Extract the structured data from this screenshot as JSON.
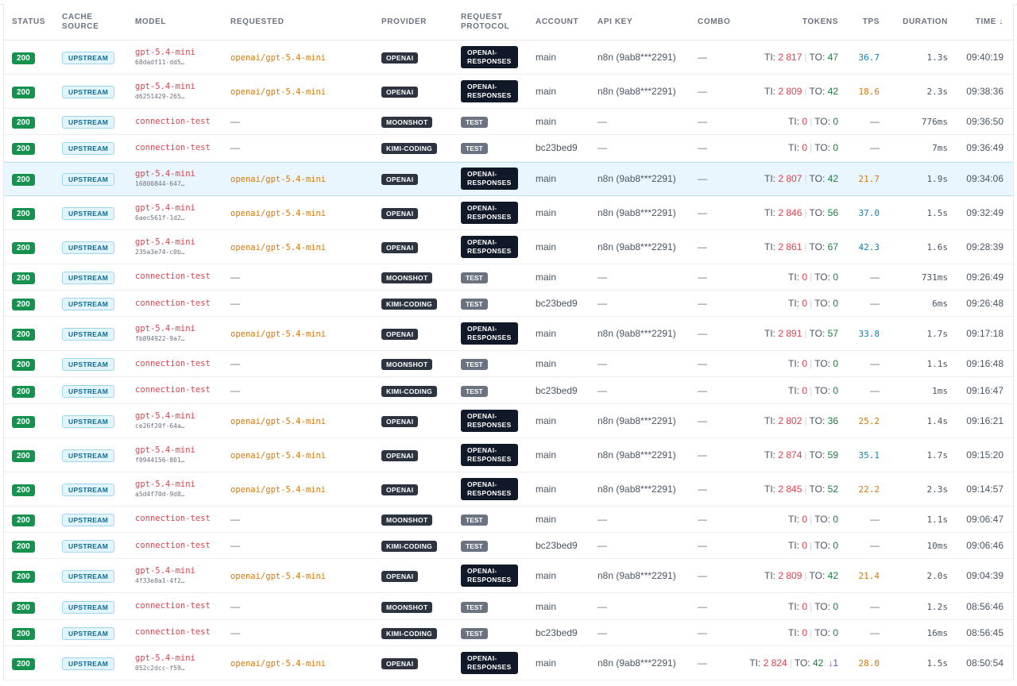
{
  "columns": {
    "status": "STATUS",
    "cache_source_1": "CACHE",
    "cache_source_2": "SOURCE",
    "model": "MODEL",
    "requested": "REQUESTED",
    "provider": "PROVIDER",
    "protocol_1": "REQUEST",
    "protocol_2": "PROTOCOL",
    "account": "ACCOUNT",
    "api_key": "API KEY",
    "combo": "COMBO",
    "tokens": "TOKENS",
    "tps": "TPS",
    "duration": "DURATION",
    "time": "TIME ↓"
  },
  "labels": {
    "ti": "TI:",
    "to": "TO:",
    "dash": "—"
  },
  "rows": [
    {
      "status": "200",
      "cache": "UPSTREAM",
      "model": "gpt-5.4-mini",
      "model_id": "68dadf11-dd5…",
      "requested": "openai/gpt-5.4-mini",
      "provider": "OPENAI",
      "protocol_1": "OPENAI-",
      "protocol_2": "RESPONSES",
      "account": "main",
      "api_key": "n8n (9ab8***2291)",
      "combo": "—",
      "ti": "2 817",
      "to": "47",
      "tps": "36.7",
      "tps_color": "blue",
      "duration": "1.3s",
      "time": "09:40:19"
    },
    {
      "status": "200",
      "cache": "UPSTREAM",
      "model": "gpt-5.4-mini",
      "model_id": "d6251429-265…",
      "requested": "openai/gpt-5.4-mini",
      "provider": "OPENAI",
      "protocol_1": "OPENAI-",
      "protocol_2": "RESPONSES",
      "account": "main",
      "api_key": "n8n (9ab8***2291)",
      "combo": "—",
      "ti": "2 809",
      "to": "42",
      "tps": "18.6",
      "tps_color": "orange",
      "duration": "2.3s",
      "time": "09:38:36"
    },
    {
      "status": "200",
      "cache": "UPSTREAM",
      "model": "connection-test",
      "model_id": "",
      "requested": "—",
      "provider": "MOONSHOT",
      "protocol_1": "TEST",
      "protocol_2": "",
      "account": "main",
      "api_key": "—",
      "combo": "—",
      "ti": "0",
      "to": "0",
      "tps": "—",
      "tps_color": "none",
      "duration": "776ms",
      "time": "09:36:50"
    },
    {
      "status": "200",
      "cache": "UPSTREAM",
      "model": "connection-test",
      "model_id": "",
      "requested": "—",
      "provider": "KIMI-CODING",
      "protocol_1": "TEST",
      "protocol_2": "",
      "account": "bc23bed9",
      "api_key": "—",
      "combo": "—",
      "ti": "0",
      "to": "0",
      "tps": "—",
      "tps_color": "none",
      "duration": "7ms",
      "time": "09:36:49"
    },
    {
      "status": "200",
      "cache": "UPSTREAM",
      "model": "gpt-5.4-mini",
      "model_id": "16800844-647…",
      "requested": "openai/gpt-5.4-mini",
      "provider": "OPENAI",
      "protocol_1": "OPENAI-",
      "protocol_2": "RESPONSES",
      "account": "main",
      "api_key": "n8n (9ab8***2291)",
      "combo": "—",
      "ti": "2 807",
      "to": "42",
      "tps": "21.7",
      "tps_color": "orange",
      "duration": "1.9s",
      "time": "09:34:06",
      "selected": true
    },
    {
      "status": "200",
      "cache": "UPSTREAM",
      "model": "gpt-5.4-mini",
      "model_id": "6aec561f-1d2…",
      "requested": "openai/gpt-5.4-mini",
      "provider": "OPENAI",
      "protocol_1": "OPENAI-",
      "protocol_2": "RESPONSES",
      "account": "main",
      "api_key": "n8n (9ab8***2291)",
      "combo": "—",
      "ti": "2 846",
      "to": "56",
      "tps": "37.0",
      "tps_color": "blue",
      "duration": "1.5s",
      "time": "09:32:49"
    },
    {
      "status": "200",
      "cache": "UPSTREAM",
      "model": "gpt-5.4-mini",
      "model_id": "235a3e74-c0b…",
      "requested": "openai/gpt-5.4-mini",
      "provider": "OPENAI",
      "protocol_1": "OPENAI-",
      "protocol_2": "RESPONSES",
      "account": "main",
      "api_key": "n8n (9ab8***2291)",
      "combo": "—",
      "ti": "2 861",
      "to": "67",
      "tps": "42.3",
      "tps_color": "blue",
      "duration": "1.6s",
      "time": "09:28:39"
    },
    {
      "status": "200",
      "cache": "UPSTREAM",
      "model": "connection-test",
      "model_id": "",
      "requested": "—",
      "provider": "MOONSHOT",
      "protocol_1": "TEST",
      "protocol_2": "",
      "account": "main",
      "api_key": "—",
      "combo": "—",
      "ti": "0",
      "to": "0",
      "tps": "—",
      "tps_color": "none",
      "duration": "731ms",
      "time": "09:26:49"
    },
    {
      "status": "200",
      "cache": "UPSTREAM",
      "model": "connection-test",
      "model_id": "",
      "requested": "—",
      "provider": "KIMI-CODING",
      "protocol_1": "TEST",
      "protocol_2": "",
      "account": "bc23bed9",
      "api_key": "—",
      "combo": "—",
      "ti": "0",
      "to": "0",
      "tps": "—",
      "tps_color": "none",
      "duration": "6ms",
      "time": "09:26:48"
    },
    {
      "status": "200",
      "cache": "UPSTREAM",
      "model": "gpt-5.4-mini",
      "model_id": "fb894922-9a7…",
      "requested": "openai/gpt-5.4-mini",
      "provider": "OPENAI",
      "protocol_1": "OPENAI-",
      "protocol_2": "RESPONSES",
      "account": "main",
      "api_key": "n8n (9ab8***2291)",
      "combo": "—",
      "ti": "2 891",
      "to": "57",
      "tps": "33.8",
      "tps_color": "blue",
      "duration": "1.7s",
      "time": "09:17:18"
    },
    {
      "status": "200",
      "cache": "UPSTREAM",
      "model": "connection-test",
      "model_id": "",
      "requested": "—",
      "provider": "MOONSHOT",
      "protocol_1": "TEST",
      "protocol_2": "",
      "account": "main",
      "api_key": "—",
      "combo": "—",
      "ti": "0",
      "to": "0",
      "tps": "—",
      "tps_color": "none",
      "duration": "1.1s",
      "time": "09:16:48"
    },
    {
      "status": "200",
      "cache": "UPSTREAM",
      "model": "connection-test",
      "model_id": "",
      "requested": "—",
      "provider": "KIMI-CODING",
      "protocol_1": "TEST",
      "protocol_2": "",
      "account": "bc23bed9",
      "api_key": "—",
      "combo": "—",
      "ti": "0",
      "to": "0",
      "tps": "—",
      "tps_color": "none",
      "duration": "1ms",
      "time": "09:16:47"
    },
    {
      "status": "200",
      "cache": "UPSTREAM",
      "model": "gpt-5.4-mini",
      "model_id": "ce26f20f-64a…",
      "requested": "openai/gpt-5.4-mini",
      "provider": "OPENAI",
      "protocol_1": "OPENAI-",
      "protocol_2": "RESPONSES",
      "account": "main",
      "api_key": "n8n (9ab8***2291)",
      "combo": "—",
      "ti": "2 802",
      "to": "36",
      "tps": "25.2",
      "tps_color": "orange",
      "duration": "1.4s",
      "time": "09:16:21"
    },
    {
      "status": "200",
      "cache": "UPSTREAM",
      "model": "gpt-5.4-mini",
      "model_id": "f0944156-801…",
      "requested": "openai/gpt-5.4-mini",
      "provider": "OPENAI",
      "protocol_1": "OPENAI-",
      "protocol_2": "RESPONSES",
      "account": "main",
      "api_key": "n8n (9ab8***2291)",
      "combo": "—",
      "ti": "2 874",
      "to": "59",
      "tps": "35.1",
      "tps_color": "blue",
      "duration": "1.7s",
      "time": "09:15:20"
    },
    {
      "status": "200",
      "cache": "UPSTREAM",
      "model": "gpt-5.4-mini",
      "model_id": "a5d4f70d-9d8…",
      "requested": "openai/gpt-5.4-mini",
      "provider": "OPENAI",
      "protocol_1": "OPENAI-",
      "protocol_2": "RESPONSES",
      "account": "main",
      "api_key": "n8n (9ab8***2291)",
      "combo": "—",
      "ti": "2 845",
      "to": "52",
      "tps": "22.2",
      "tps_color": "orange",
      "duration": "2.3s",
      "time": "09:14:57"
    },
    {
      "status": "200",
      "cache": "UPSTREAM",
      "model": "connection-test",
      "model_id": "",
      "requested": "—",
      "provider": "MOONSHOT",
      "protocol_1": "TEST",
      "protocol_2": "",
      "account": "main",
      "api_key": "—",
      "combo": "—",
      "ti": "0",
      "to": "0",
      "tps": "—",
      "tps_color": "none",
      "duration": "1.1s",
      "time": "09:06:47"
    },
    {
      "status": "200",
      "cache": "UPSTREAM",
      "model": "connection-test",
      "model_id": "",
      "requested": "—",
      "provider": "KIMI-CODING",
      "protocol_1": "TEST",
      "protocol_2": "",
      "account": "bc23bed9",
      "api_key": "—",
      "combo": "—",
      "ti": "0",
      "to": "0",
      "tps": "—",
      "tps_color": "none",
      "duration": "10ms",
      "time": "09:06:46"
    },
    {
      "status": "200",
      "cache": "UPSTREAM",
      "model": "gpt-5.4-mini",
      "model_id": "4f33e8a1-4f2…",
      "requested": "openai/gpt-5.4-mini",
      "provider": "OPENAI",
      "protocol_1": "OPENAI-",
      "protocol_2": "RESPONSES",
      "account": "main",
      "api_key": "n8n (9ab8***2291)",
      "combo": "—",
      "ti": "2 809",
      "to": "42",
      "tps": "21.4",
      "tps_color": "orange",
      "duration": "2.0s",
      "time": "09:04:39"
    },
    {
      "status": "200",
      "cache": "UPSTREAM",
      "model": "connection-test",
      "model_id": "",
      "requested": "—",
      "provider": "MOONSHOT",
      "protocol_1": "TEST",
      "protocol_2": "",
      "account": "main",
      "api_key": "—",
      "combo": "—",
      "ti": "0",
      "to": "0",
      "tps": "—",
      "tps_color": "none",
      "duration": "1.2s",
      "time": "08:56:46"
    },
    {
      "status": "200",
      "cache": "UPSTREAM",
      "model": "connection-test",
      "model_id": "",
      "requested": "—",
      "provider": "KIMI-CODING",
      "protocol_1": "TEST",
      "protocol_2": "",
      "account": "bc23bed9",
      "api_key": "—",
      "combo": "—",
      "ti": "0",
      "to": "0",
      "tps": "—",
      "tps_color": "none",
      "duration": "16ms",
      "time": "08:56:45"
    },
    {
      "status": "200",
      "cache": "UPSTREAM",
      "model": "gpt-5.4-mini",
      "model_id": "052c2dcc-f59…",
      "requested": "openai/gpt-5.4-mini",
      "provider": "OPENAI",
      "protocol_1": "OPENAI-",
      "protocol_2": "RESPONSES",
      "account": "main",
      "api_key": "n8n (9ab8***2291)",
      "combo": "—",
      "ti": "2 824",
      "to": "42",
      "extra": "↓1",
      "tps": "28.0",
      "tps_color": "orange",
      "duration": "1.5s",
      "time": "08:50:54"
    }
  ]
}
